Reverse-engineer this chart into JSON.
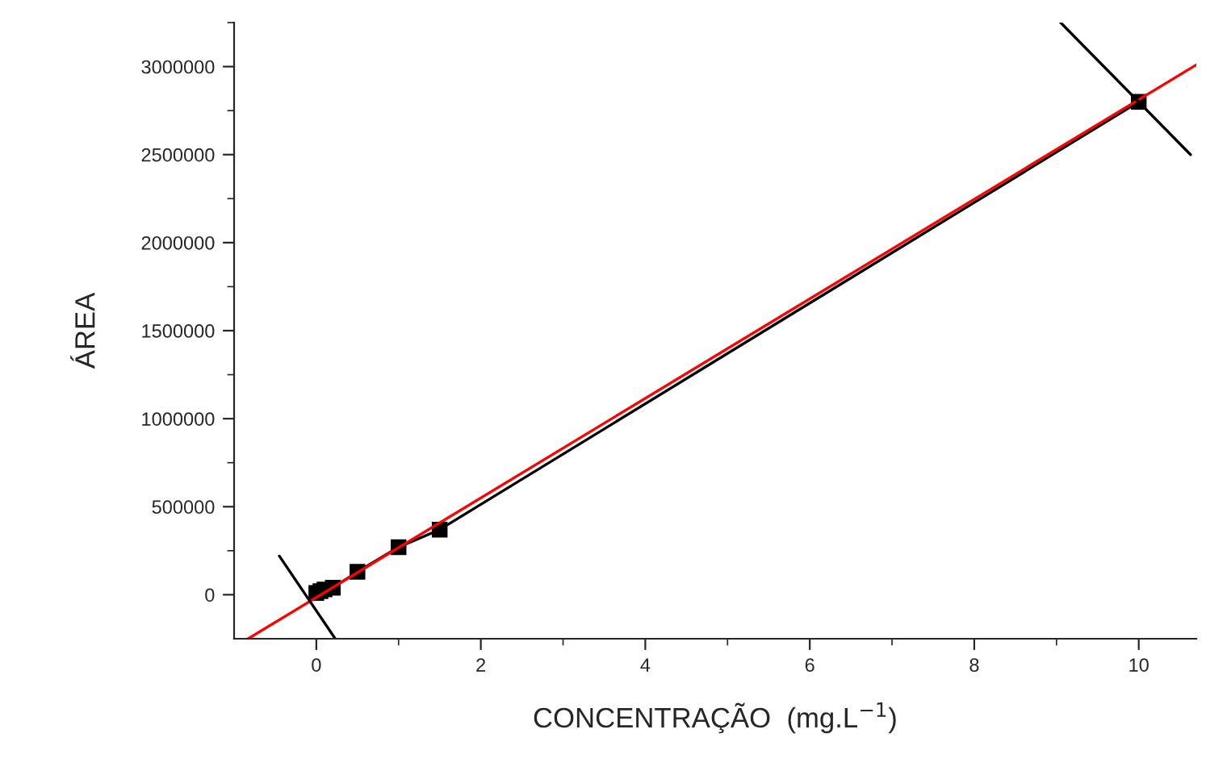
{
  "chart_data": {
    "type": "line",
    "xlabel": "CONCENTRAÇÃO  (mg.L$^{−1}$)",
    "ylabel": "ÁREA",
    "xlim": [
      -1,
      10.7
    ],
    "ylim": [
      -250000,
      3250000
    ],
    "xticks": [
      0,
      2,
      4,
      6,
      8,
      10
    ],
    "yticks": [
      0,
      500000,
      1000000,
      1500000,
      2000000,
      2500000,
      3000000
    ],
    "grid": false,
    "legend": false,
    "series": [
      {
        "color": "#000000",
        "marker": "square",
        "x": [
          0,
          0.05,
          0.1,
          0.2,
          0.5,
          1.0,
          1.5,
          10
        ],
        "values": [
          10000,
          20000,
          30000,
          40000,
          130000,
          270000,
          370000,
          2800000
        ]
      },
      {
        "color": "#ff0000",
        "marker": "none",
        "x": [
          -0.83,
          10.7
        ],
        "values": [
          -250000,
          3010000
        ]
      },
      {
        "color": "#000000",
        "marker": "none",
        "x": [
          -0.45,
          0.23
        ],
        "values": [
          220000,
          -250000
        ]
      },
      {
        "color": "#000000",
        "marker": "none",
        "x": [
          9.05,
          10.63
        ],
        "values": [
          3250000,
          2500000
        ]
      }
    ]
  }
}
